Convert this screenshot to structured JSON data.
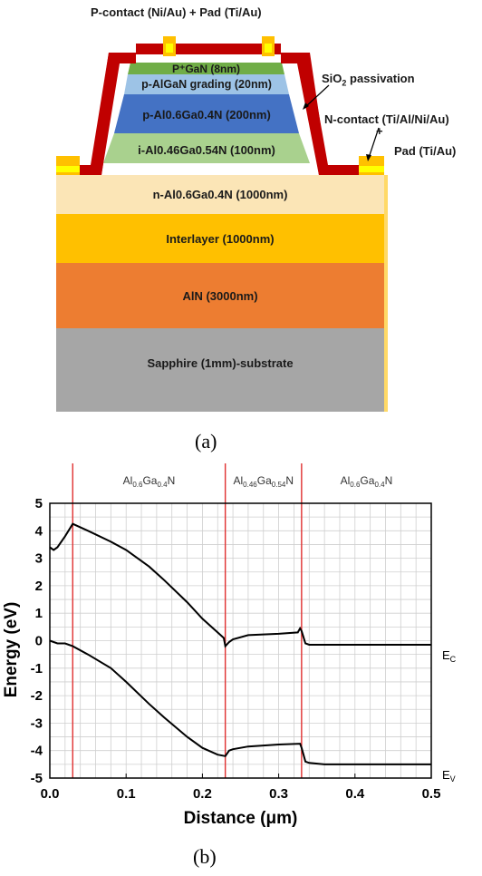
{
  "panel_a": {
    "caption": "(a)",
    "label_p_contact": "P-contact (Ni/Au)  + Pad (Ti/Au)",
    "label_sio2": "SiO",
    "label_sio2_sub": "2",
    "label_sio2_rest": " passivation",
    "label_n_contact": "N-contact (Ti/Al/Ni/Au)",
    "label_plus": "+",
    "label_n_pad": "Pad (Ti/Au)",
    "layers": {
      "p_gan": "P⁺GaN (8nm)",
      "p_algan_grading": "p-AlGaN grading (20nm)",
      "p_algan": "p-Al0.6Ga0.4N (200nm)",
      "i_algan": "i-Al0.46Ga0.54N  (100nm)",
      "n_algan": "n-Al0.6Ga0.4N  (1000nm)",
      "interlayer": "Interlayer (1000nm)",
      "aln": "AlN (3000nm)",
      "sapphire": "Sapphire (1mm)-substrate"
    },
    "colors": {
      "sio2": "#c00000",
      "contact": "#ffc000",
      "contact_pad": "#ffff00",
      "p_gan": "#70ad47",
      "p_algan_grading": "#9dc3e6",
      "p_algan": "#4472c4",
      "i_algan": "#a9d18e",
      "n_algan": "#fbe5b6",
      "interlayer": "#ffc000",
      "aln": "#ed7d31",
      "sapphire": "#a6a6a6"
    }
  },
  "panel_b": {
    "caption": "(b)",
    "chart_data": {
      "type": "line",
      "xlabel": "Distance (μm)",
      "ylabel": "Energy (eV)",
      "xlim": [
        0.0,
        0.5
      ],
      "ylim": [
        -5,
        5
      ],
      "x_ticks": [
        "0.0",
        "0.1",
        "0.2",
        "0.3",
        "0.4",
        "0.5"
      ],
      "y_ticks": [
        "5",
        "4",
        "3",
        "2",
        "1",
        "0",
        "-1",
        "-2",
        "-3",
        "-4",
        "-5"
      ],
      "grid": true,
      "region_boundaries": [
        0.03,
        0.23,
        0.33
      ],
      "region_labels": [
        {
          "main": "Al",
          "s1": "0.6",
          "mid": "Ga",
          "s2": "0.4",
          "end": "N",
          "x_center": 0.13
        },
        {
          "main": "Al",
          "s1": "0.46",
          "mid": "Ga",
          "s2": "0.54",
          "end": "N",
          "x_center": 0.28
        },
        {
          "main": "Al",
          "s1": "0.6",
          "mid": "Ga",
          "s2": "0.4",
          "end": "N",
          "x_center": 0.415
        }
      ],
      "series": [
        {
          "name": "Ec",
          "label_main": "E",
          "label_sub": "C",
          "x": [
            0.0,
            0.005,
            0.01,
            0.02,
            0.03,
            0.05,
            0.08,
            0.1,
            0.13,
            0.15,
            0.18,
            0.2,
            0.22,
            0.228,
            0.23,
            0.235,
            0.24,
            0.26,
            0.3,
            0.325,
            0.328,
            0.33,
            0.335,
            0.34,
            0.36,
            0.4,
            0.45,
            0.5
          ],
          "y": [
            3.4,
            3.3,
            3.4,
            3.8,
            4.25,
            4.0,
            3.6,
            3.3,
            2.7,
            2.2,
            1.4,
            0.8,
            0.3,
            0.1,
            -0.2,
            -0.05,
            0.05,
            0.2,
            0.25,
            0.3,
            0.45,
            0.35,
            -0.1,
            -0.15,
            -0.15,
            -0.15,
            -0.15,
            -0.15
          ]
        },
        {
          "name": "Ev",
          "label_main": "E",
          "label_sub": "V",
          "x": [
            0.0,
            0.01,
            0.02,
            0.03,
            0.05,
            0.08,
            0.1,
            0.13,
            0.15,
            0.18,
            0.2,
            0.22,
            0.23,
            0.235,
            0.24,
            0.26,
            0.3,
            0.328,
            0.33,
            0.335,
            0.34,
            0.36,
            0.4,
            0.45,
            0.5
          ],
          "y": [
            0.0,
            -0.1,
            -0.1,
            -0.2,
            -0.5,
            -1.0,
            -1.5,
            -2.3,
            -2.8,
            -3.5,
            -3.9,
            -4.15,
            -4.2,
            -4.0,
            -3.95,
            -3.85,
            -3.78,
            -3.75,
            -3.9,
            -4.4,
            -4.45,
            -4.5,
            -4.5,
            -4.5,
            -4.5
          ]
        }
      ]
    }
  }
}
